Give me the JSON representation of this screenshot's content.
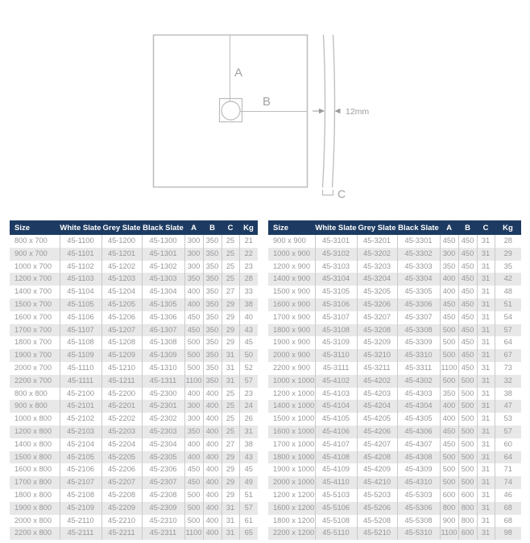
{
  "diagram": {
    "label_a": "A",
    "label_b": "B",
    "label_c": "C",
    "thickness_label": "12mm"
  },
  "colors": {
    "header_bg": "#1d3b62",
    "header_text": "#ffffff",
    "row_stripe": "#e8e8e9",
    "body_text": "#97979a",
    "diagram_line": "#bcbcbc",
    "diagram_label": "#a2a2a2"
  },
  "tables": {
    "headers": [
      "Size",
      "White Slate",
      "Grey Slate",
      "Black Slate",
      "A",
      "B",
      "C",
      "Kg"
    ],
    "left": {
      "rows": [
        [
          "800 x 700",
          "45-1100",
          "45-1200",
          "45-1300",
          "300",
          "350",
          "25",
          "21"
        ],
        [
          "900 x 700",
          "45-1101",
          "45-1201",
          "45-1301",
          "300",
          "350",
          "25",
          "22"
        ],
        [
          "1000 x 700",
          "45-1102",
          "45-1202",
          "45-1302",
          "300",
          "350",
          "25",
          "23"
        ],
        [
          "1200 x 700",
          "45-1103",
          "45-1203",
          "45-1303",
          "350",
          "350",
          "25",
          "28"
        ],
        [
          "1400 x 700",
          "45-1104",
          "45-1204",
          "45-1304",
          "400",
          "350",
          "27",
          "33"
        ],
        [
          "1500 x 700",
          "45-1105",
          "45-1205",
          "45-1305",
          "400",
          "350",
          "29",
          "38"
        ],
        [
          "1600 x 700",
          "45-1106",
          "45-1206",
          "45-1306",
          "450",
          "350",
          "29",
          "40"
        ],
        [
          "1700 x 700",
          "45-1107",
          "45-1207",
          "45-1307",
          "450",
          "350",
          "29",
          "43"
        ],
        [
          "1800 x 700",
          "45-1108",
          "45-1208",
          "45-1308",
          "500",
          "350",
          "29",
          "45"
        ],
        [
          "1900 x 700",
          "45-1109",
          "45-1209",
          "45-1309",
          "500",
          "350",
          "31",
          "50"
        ],
        [
          "2000 x 700",
          "45-1110",
          "45-1210",
          "45-1310",
          "500",
          "350",
          "31",
          "52"
        ],
        [
          "2200 x 700",
          "45-1111",
          "45-1211",
          "45-1311",
          "1100",
          "350",
          "31",
          "57"
        ],
        [
          "800 x 800",
          "45-2100",
          "45-2200",
          "45-2300",
          "400",
          "400",
          "25",
          "23"
        ],
        [
          "900 x 800",
          "45-2101",
          "45-2201",
          "45-2301",
          "300",
          "400",
          "25",
          "24"
        ],
        [
          "1000 x 800",
          "45-2102",
          "45-2202",
          "45-2302",
          "300",
          "400",
          "25",
          "26"
        ],
        [
          "1200 x 800",
          "45-2103",
          "45-2203",
          "45-2303",
          "350",
          "400",
          "25",
          "31"
        ],
        [
          "1400 x 800",
          "45-2104",
          "45-2204",
          "45-2304",
          "400",
          "400",
          "27",
          "38"
        ],
        [
          "1500 x 800",
          "45-2105",
          "45-2205",
          "45-2305",
          "400",
          "400",
          "29",
          "43"
        ],
        [
          "1600 x 800",
          "45-2106",
          "45-2206",
          "45-2306",
          "450",
          "400",
          "29",
          "45"
        ],
        [
          "1700 x 800",
          "45-2107",
          "45-2207",
          "45-2307",
          "450",
          "400",
          "29",
          "49"
        ],
        [
          "1800 x 800",
          "45-2108",
          "45-2208",
          "45-2308",
          "500",
          "400",
          "29",
          "51"
        ],
        [
          "1900 x 800",
          "45-2109",
          "45-2209",
          "45-2309",
          "500",
          "400",
          "31",
          "57"
        ],
        [
          "2000 x 800",
          "45-2110",
          "45-2210",
          "45-2310",
          "500",
          "400",
          "31",
          "61"
        ],
        [
          "2200 x 800",
          "45-2111",
          "45-2211",
          "45-2311",
          "1100",
          "400",
          "31",
          "65"
        ]
      ]
    },
    "right": {
      "rows": [
        [
          "900 x 900",
          "45-3101",
          "45-3201",
          "45-3301",
          "450",
          "450",
          "31",
          "28"
        ],
        [
          "1000 x 900",
          "45-3102",
          "45-3202",
          "45-3302",
          "300",
          "450",
          "31",
          "29"
        ],
        [
          "1200 x 900",
          "45-3103",
          "45-3203",
          "45-3303",
          "350",
          "450",
          "31",
          "35"
        ],
        [
          "1400 x 900",
          "45-3104",
          "45-3204",
          "45-3304",
          "400",
          "450",
          "31",
          "42"
        ],
        [
          "1500 x 900",
          "45-3105",
          "45-3205",
          "45-3305",
          "400",
          "450",
          "31",
          "48"
        ],
        [
          "1600 x 900",
          "45-3106",
          "45-3206",
          "45-3306",
          "450",
          "450",
          "31",
          "51"
        ],
        [
          "1700 x 900",
          "45-3107",
          "45-3207",
          "45-3307",
          "450",
          "450",
          "31",
          "54"
        ],
        [
          "1800 x 900",
          "45-3108",
          "45-3208",
          "45-3308",
          "500",
          "450",
          "31",
          "57"
        ],
        [
          "1900 x 900",
          "45-3109",
          "45-3209",
          "45-3309",
          "500",
          "450",
          "31",
          "64"
        ],
        [
          "2000 x 900",
          "45-3110",
          "45-3210",
          "45-3310",
          "500",
          "450",
          "31",
          "67"
        ],
        [
          "2200 x 900",
          "45-3111",
          "45-3211",
          "45-3311",
          "1100",
          "450",
          "31",
          "73"
        ],
        [
          "1000 x 1000",
          "45-4102",
          "45-4202",
          "45-4302",
          "500",
          "500",
          "31",
          "32"
        ],
        [
          "1200 x 1000",
          "45-4103",
          "45-4203",
          "45-4303",
          "350",
          "500",
          "31",
          "38"
        ],
        [
          "1400 x 1000",
          "45-4104",
          "45-4204",
          "45-4304",
          "400",
          "500",
          "31",
          "47"
        ],
        [
          "1500 x 1000",
          "45-4105",
          "45-4205",
          "45-4305",
          "400",
          "500",
          "31",
          "53"
        ],
        [
          "1600 x 1000",
          "45-4106",
          "45-4206",
          "45-4306",
          "450",
          "500",
          "31",
          "57"
        ],
        [
          "1700 x 1000",
          "45-4107",
          "45-4207",
          "45-4307",
          "450",
          "500",
          "31",
          "60"
        ],
        [
          "1800 x 1000",
          "45-4108",
          "45-4208",
          "45-4308",
          "500",
          "500",
          "31",
          "64"
        ],
        [
          "1900 x 1000",
          "45-4109",
          "45-4209",
          "45-4309",
          "500",
          "500",
          "31",
          "71"
        ],
        [
          "2000 x 1000",
          "45-4110",
          "45-4210",
          "45-4310",
          "500",
          "500",
          "31",
          "74"
        ],
        [
          "1200 x 1200",
          "45-5103",
          "45-5203",
          "45-5303",
          "600",
          "600",
          "31",
          "46"
        ],
        [
          "1600 x 1200",
          "45-5106",
          "45-5206",
          "45-5306",
          "800",
          "800",
          "31",
          "68"
        ],
        [
          "1800 x 1200",
          "45-5108",
          "45-5208",
          "45-5308",
          "900",
          "800",
          "31",
          "68"
        ],
        [
          "2200 x 1200",
          "45-5110",
          "45-5210",
          "45-5310",
          "1100",
          "600",
          "31",
          "98"
        ]
      ]
    }
  }
}
